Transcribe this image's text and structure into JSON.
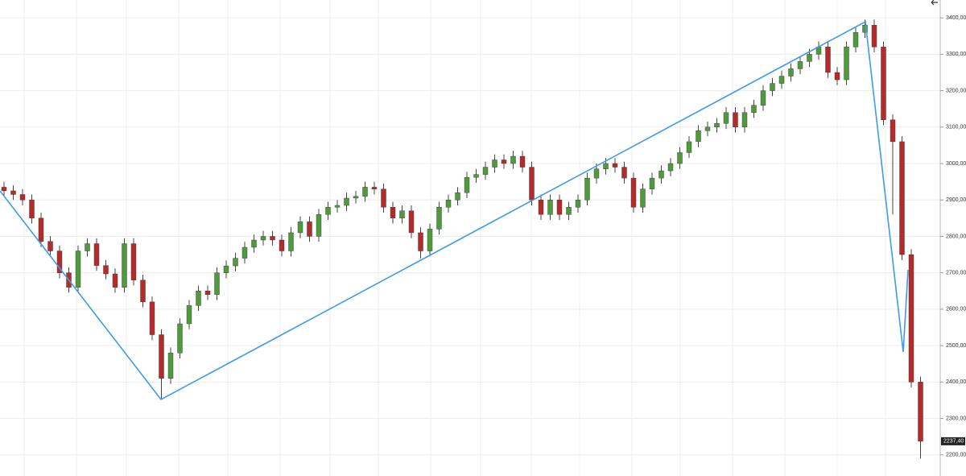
{
  "chart_data": {
    "type": "candlestick",
    "open": [
      2935,
      2925,
      2915,
      2900,
      2850,
      2786,
      2760,
      2700,
      2660,
      2760,
      2780,
      2720,
      2697,
      2660,
      2780,
      2680,
      2620,
      2530,
      2410,
      2480,
      2560,
      2610,
      2650,
      2640,
      2700,
      2719,
      2740,
      2770,
      2790,
      2800,
      2790,
      2760,
      2810,
      2840,
      2800,
      2860,
      2880,
      2885,
      2905,
      2910,
      2935,
      2930,
      2880,
      2850,
      2870,
      2810,
      2760,
      2820,
      2880,
      2900,
      2920,
      2962,
      2970,
      2990,
      3010,
      3000,
      3020,
      2990,
      2900,
      2860,
      2900,
      2860,
      2880,
      2900,
      2960,
      2985,
      3000,
      2990,
      2960,
      2880,
      2930,
      2960,
      2980,
      3000,
      3030,
      3060,
      3090,
      3100,
      3110,
      3140,
      3100,
      3140,
      3160,
      3200,
      3220,
      3240,
      3260,
      3280,
      3300,
      3320,
      3250,
      3230,
      3320,
      3360,
      3380,
      3320,
      3120,
      3060,
      2750,
      2400
    ],
    "high": [
      2950,
      2940,
      2930,
      2915,
      2865,
      2801,
      2775,
      2715,
      2775,
      2795,
      2795,
      2735,
      2712,
      2795,
      2795,
      2695,
      2635,
      2545,
      2495,
      2575,
      2625,
      2665,
      2665,
      2715,
      2734,
      2755,
      2785,
      2805,
      2815,
      2815,
      2805,
      2825,
      2855,
      2855,
      2875,
      2895,
      2900,
      2920,
      2925,
      2950,
      2950,
      2945,
      2895,
      2885,
      2885,
      2825,
      2835,
      2895,
      2915,
      2935,
      2977,
      2985,
      3005,
      3025,
      3025,
      3035,
      3035,
      3005,
      2915,
      2915,
      2915,
      2895,
      2915,
      2975,
      3000,
      3015,
      3015,
      3005,
      2975,
      2945,
      2975,
      2995,
      3015,
      3045,
      3075,
      3105,
      3115,
      3125,
      3155,
      3155,
      3155,
      3175,
      3215,
      3235,
      3255,
      3275,
      3295,
      3315,
      3335,
      3335,
      3265,
      3335,
      3375,
      3395,
      3395,
      3335,
      3135,
      3075,
      2765,
      2415
    ],
    "low": [
      2910,
      2900,
      2885,
      2835,
      2771,
      2745,
      2685,
      2645,
      2645,
      2745,
      2705,
      2682,
      2645,
      2645,
      2665,
      2605,
      2515,
      2355,
      2395,
      2465,
      2545,
      2595,
      2625,
      2625,
      2685,
      2704,
      2725,
      2755,
      2775,
      2775,
      2745,
      2745,
      2795,
      2785,
      2785,
      2845,
      2865,
      2870,
      2890,
      2895,
      2915,
      2865,
      2835,
      2835,
      2795,
      2740,
      2745,
      2805,
      2865,
      2885,
      2905,
      2947,
      2955,
      2975,
      2985,
      2985,
      2975,
      2885,
      2845,
      2845,
      2845,
      2845,
      2865,
      2885,
      2945,
      2970,
      2975,
      2945,
      2865,
      2865,
      2915,
      2945,
      2965,
      2985,
      3015,
      3045,
      3075,
      3085,
      3095,
      3085,
      3085,
      3125,
      3145,
      3185,
      3205,
      3225,
      3245,
      3265,
      3285,
      3235,
      3215,
      3215,
      3305,
      3345,
      3305,
      3105,
      2860,
      2735,
      2385,
      2190
    ],
    "close": [
      2925,
      2915,
      2900,
      2850,
      2786,
      2760,
      2700,
      2660,
      2760,
      2780,
      2720,
      2697,
      2660,
      2780,
      2680,
      2620,
      2530,
      2410,
      2480,
      2560,
      2610,
      2650,
      2640,
      2700,
      2719,
      2740,
      2770,
      2790,
      2800,
      2790,
      2760,
      2810,
      2840,
      2800,
      2860,
      2880,
      2885,
      2905,
      2910,
      2935,
      2930,
      2880,
      2850,
      2870,
      2810,
      2760,
      2820,
      2880,
      2900,
      2920,
      2962,
      2970,
      2990,
      3010,
      3000,
      3020,
      2990,
      2900,
      2860,
      2900,
      2860,
      2880,
      2900,
      2960,
      2985,
      3000,
      2990,
      2960,
      2880,
      2930,
      2960,
      2980,
      3000,
      3030,
      3060,
      3090,
      3100,
      3110,
      3140,
      3100,
      3140,
      3160,
      3200,
      3220,
      3240,
      3260,
      3280,
      3300,
      3320,
      3250,
      3230,
      3320,
      3360,
      3380,
      3320,
      3120,
      3060,
      2750,
      2400,
      2237.4
    ],
    "up_color": "#4f9a3c",
    "down_color": "#b42b2b",
    "ylim": [
      2142,
      3449
    ],
    "yticks": [
      {
        "value": 2200,
        "label": "2200,00"
      },
      {
        "value": 2300,
        "label": "2300,00"
      },
      {
        "value": 2400,
        "label": "2400,00"
      },
      {
        "value": 2500,
        "label": "2500,00"
      },
      {
        "value": 2600,
        "label": "2600,00"
      },
      {
        "value": 2700,
        "label": "2700,00"
      },
      {
        "value": 2800,
        "label": "2800,00"
      },
      {
        "value": 2900,
        "label": "2900,00"
      },
      {
        "value": 3000,
        "label": "3000,00"
      },
      {
        "value": 3100,
        "label": "3100,00"
      },
      {
        "value": 3200,
        "label": "3200,00"
      },
      {
        "value": 3300,
        "label": "3300,00"
      },
      {
        "value": 3400,
        "label": "3400,00"
      }
    ],
    "last_price": {
      "value": 2237.4,
      "label": "2237,40"
    },
    "grid": true
  }
}
